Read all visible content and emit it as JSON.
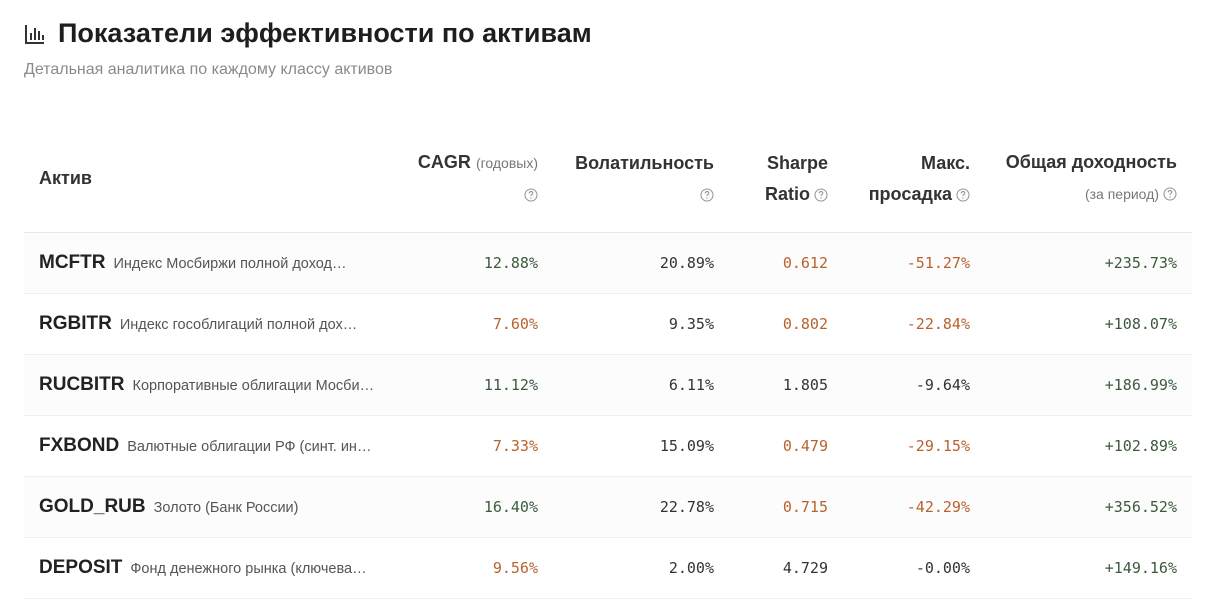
{
  "header": {
    "title": "Показатели эффективности по активам",
    "subtitle": "Детальная аналитика по каждому классу активов"
  },
  "table": {
    "columns": [
      {
        "label": "Актив"
      },
      {
        "label": "CAGR",
        "note": "(годовых)"
      },
      {
        "label": "Волатильность"
      },
      {
        "label": "Sharpe Ratio"
      },
      {
        "label": "Макс. просадка"
      },
      {
        "label": "Общая доходность",
        "note": "(за период)"
      }
    ],
    "rows": [
      {
        "ticker": "MCFTR",
        "name": "Индекс Мосбиржи полной доход…",
        "cells": [
          "12.88%",
          "20.89%",
          "0.612",
          "-51.27%",
          "+235.73%"
        ],
        "colors": [
          "#3b5a3b",
          "#333333",
          "#b8622f",
          "#b8622f",
          "#3b5a3b"
        ]
      },
      {
        "ticker": "RGBITR",
        "name": "Индекс гособлигаций полной дох…",
        "cells": [
          "7.60%",
          "9.35%",
          "0.802",
          "-22.84%",
          "+108.07%"
        ],
        "colors": [
          "#b8622f",
          "#333333",
          "#b8622f",
          "#b8622f",
          "#3b5a3b"
        ]
      },
      {
        "ticker": "RUCBITR",
        "name": "Корпоративные облигации Мосби…",
        "cells": [
          "11.12%",
          "6.11%",
          "1.805",
          "-9.64%",
          "+186.99%"
        ],
        "colors": [
          "#3b5a3b",
          "#333333",
          "#333333",
          "#333333",
          "#3b5a3b"
        ]
      },
      {
        "ticker": "FXBOND",
        "name": "Валютные облигации РФ (синт. ин…",
        "cells": [
          "7.33%",
          "15.09%",
          "0.479",
          "-29.15%",
          "+102.89%"
        ],
        "colors": [
          "#b8622f",
          "#333333",
          "#b8622f",
          "#b8622f",
          "#3b5a3b"
        ]
      },
      {
        "ticker": "GOLD_RUB",
        "name": "Золото (Банк России)",
        "cells": [
          "16.40%",
          "22.78%",
          "0.715",
          "-42.29%",
          "+356.52%"
        ],
        "colors": [
          "#3b5a3b",
          "#333333",
          "#b8622f",
          "#b8622f",
          "#3b5a3b"
        ]
      },
      {
        "ticker": "DEPOSIT",
        "name": "Фонд денежного рынка (ключева…",
        "cells": [
          "9.56%",
          "2.00%",
          "4.729",
          "-0.00%",
          "+149.16%"
        ],
        "colors": [
          "#b8622f",
          "#333333",
          "#333333",
          "#333333",
          "#3b5a3b"
        ]
      }
    ]
  }
}
